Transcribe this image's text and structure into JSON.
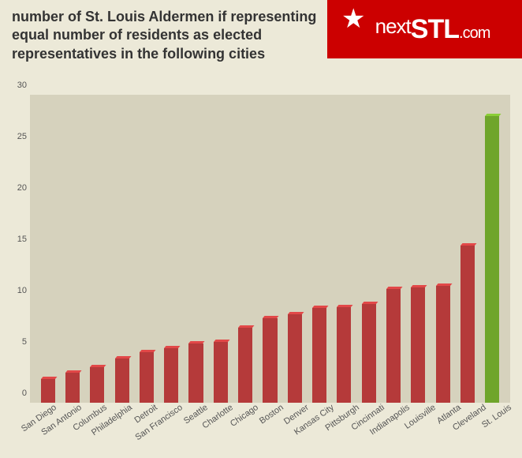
{
  "title": "number of St. Louis Aldermen if representing equal number of residents as elected representatives in the following cities",
  "title_fontsize": 18,
  "logo": {
    "brand_next": "next",
    "brand_stl": "STL",
    "brand_dotcom": ".com"
  },
  "chart": {
    "type": "bar",
    "background_color": "#ece9d8",
    "plot_background_color": "#d6d2bd",
    "axis_label_color": "#555555",
    "axis_label_fontsize": 11,
    "ylim": [
      0,
      30
    ],
    "ytick_step": 5,
    "yticks": [
      0,
      5,
      10,
      15,
      20,
      25,
      30
    ],
    "bar_width_ratio": 0.62,
    "default_bar_color": "#b53a3a",
    "highlight_bar_color": "#6fa52b",
    "label_rotation_deg": 35,
    "series": [
      {
        "label": "San Diego",
        "value": 2.3,
        "color": "#b53a3a"
      },
      {
        "label": "San Antonio",
        "value": 2.9,
        "color": "#b53a3a"
      },
      {
        "label": "Columbus",
        "value": 3.5,
        "color": "#b53a3a"
      },
      {
        "label": "Philadelphia",
        "value": 4.3,
        "color": "#b53a3a"
      },
      {
        "label": "Detroit",
        "value": 4.9,
        "color": "#b53a3a"
      },
      {
        "label": "San Francisco",
        "value": 5.3,
        "color": "#b53a3a"
      },
      {
        "label": "Seattle",
        "value": 5.8,
        "color": "#b53a3a"
      },
      {
        "label": "Charlotte",
        "value": 5.9,
        "color": "#b53a3a"
      },
      {
        "label": "Chicago",
        "value": 7.3,
        "color": "#b53a3a"
      },
      {
        "label": "Boston",
        "value": 8.2,
        "color": "#b53a3a"
      },
      {
        "label": "Denver",
        "value": 8.6,
        "color": "#b53a3a"
      },
      {
        "label": "Kansas City",
        "value": 9.2,
        "color": "#b53a3a"
      },
      {
        "label": "Pittsburgh",
        "value": 9.3,
        "color": "#b53a3a"
      },
      {
        "label": "Cincinnati",
        "value": 9.6,
        "color": "#b53a3a"
      },
      {
        "label": "Indianapolis",
        "value": 11.1,
        "color": "#b53a3a"
      },
      {
        "label": "Louisville",
        "value": 11.2,
        "color": "#b53a3a"
      },
      {
        "label": "Atlanta",
        "value": 11.4,
        "color": "#b53a3a"
      },
      {
        "label": "Cleveland",
        "value": 15.3,
        "color": "#b53a3a"
      },
      {
        "label": "St. Louis",
        "value": 27.9,
        "color": "#6fa52b"
      }
    ]
  }
}
